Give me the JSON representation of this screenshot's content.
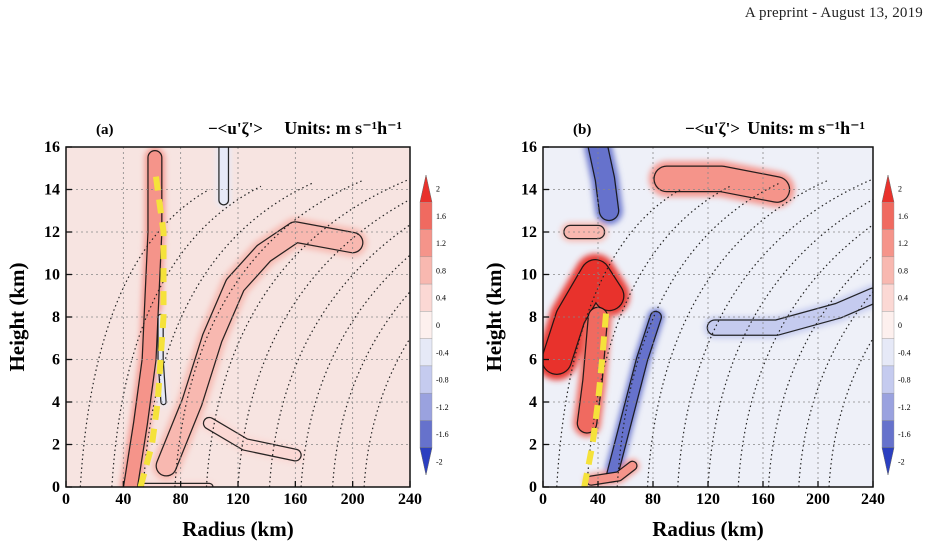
{
  "header": {
    "text": "A preprint - August 13, 2019"
  },
  "chart_data": [
    {
      "type": "heatmap",
      "panel": "(a)",
      "title": "−<u'ζ'>",
      "units": "Units: m s⁻¹h⁻¹",
      "xlabel": "Radius (km)",
      "ylabel": "Height (km)",
      "xlim": [
        0,
        240
      ],
      "ylim": [
        0,
        16
      ],
      "xticks": [
        "0",
        "40",
        "80",
        "120",
        "160",
        "200",
        "240"
      ],
      "yticks": [
        "0",
        "2",
        "4",
        "6",
        "8",
        "10",
        "12",
        "14",
        "16"
      ],
      "grid": true,
      "colorbar": {
        "levels": [
          "2",
          "1.6",
          "1.2",
          "0.8",
          "0.4",
          "0",
          "-0.4",
          "-0.8",
          "-1.2",
          "-1.6",
          "-2"
        ],
        "colors": [
          "#e8322c",
          "#f06a60",
          "#f5948a",
          "#f8b8b0",
          "#fbd8d4",
          "#fdf0ee",
          "#e6e9f7",
          "#c5cbef",
          "#9aa2df",
          "#6672cc",
          "#2b3fc0"
        ]
      },
      "dashed_line": [
        [
          52,
          0
        ],
        [
          60,
          2
        ],
        [
          64,
          4
        ],
        [
          66,
          6
        ],
        [
          68,
          8
        ],
        [
          68,
          10
        ],
        [
          68,
          12
        ],
        [
          64,
          14
        ],
        [
          62,
          15
        ]
      ],
      "features": [
        {
          "sign": "positive",
          "value": 1.0,
          "path": [
            [
              45,
              0
            ],
            [
              52,
              3
            ],
            [
              58,
              6
            ],
            [
              60,
              9
            ],
            [
              62,
              12
            ],
            [
              62,
              15.5
            ]
          ],
          "width_km": 14
        },
        {
          "sign": "positive",
          "value": 0.7,
          "path": [
            [
              70,
              1
            ],
            [
              88,
              4
            ],
            [
              102,
              7
            ],
            [
              118,
              9.5
            ],
            [
              138,
              11
            ],
            [
              160,
              12
            ],
            [
              200,
              11.5
            ]
          ],
          "width_km": 20
        },
        {
          "sign": "positive",
          "value": 0.5,
          "path": [
            [
              100,
              3
            ],
            [
              125,
              2
            ],
            [
              160,
              1.5
            ]
          ],
          "width_km": 12
        },
        {
          "sign": "positive",
          "value": 0.5,
          "path": [
            [
              55,
              0
            ],
            [
              75,
              0
            ],
            [
              100,
              0
            ]
          ],
          "width_km": 8
        },
        {
          "sign": "negative",
          "value": -0.6,
          "path": [
            [
              110,
              16
            ],
            [
              110,
              13.5
            ]
          ],
          "width_km": 10
        },
        {
          "sign": "negative",
          "value": -0.4,
          "path": [
            [
              68,
              4
            ],
            [
              66,
              6
            ],
            [
              66,
              8
            ]
          ],
          "width_km": 6
        }
      ]
    },
    {
      "type": "heatmap",
      "panel": "(b)",
      "title": "−<u'ζ'>",
      "units": "Units: m s⁻¹h⁻¹",
      "xlabel": "Radius (km)",
      "ylabel": "Height (km)",
      "xlim": [
        0,
        240
      ],
      "ylim": [
        0,
        16
      ],
      "xticks": [
        "0",
        "40",
        "80",
        "120",
        "160",
        "200",
        "240"
      ],
      "yticks": [
        "0",
        "2",
        "4",
        "6",
        "8",
        "10",
        "12",
        "14",
        "16"
      ],
      "grid": true,
      "colorbar": {
        "levels": [
          "2",
          "1.6",
          "1.2",
          "0.8",
          "0.4",
          "0",
          "-0.4",
          "-0.8",
          "-1.2",
          "-1.6",
          "-2"
        ],
        "colors": [
          "#e8322c",
          "#f06a60",
          "#f5948a",
          "#f8b8b0",
          "#fbd8d4",
          "#fdf0ee",
          "#e6e9f7",
          "#c5cbef",
          "#9aa2df",
          "#6672cc",
          "#2b3fc0"
        ]
      },
      "dashed_line": [
        [
          30,
          0
        ],
        [
          36,
          2
        ],
        [
          40,
          4
        ],
        [
          43,
          6
        ],
        [
          46,
          8.3
        ]
      ],
      "features": [
        {
          "sign": "positive",
          "value": 2.0,
          "path": [
            [
              10,
              6
            ],
            [
              20,
              8
            ],
            [
              38,
              10
            ],
            [
              48,
              9
            ]
          ],
          "width_km": 30
        },
        {
          "sign": "positive",
          "value": 1.6,
          "path": [
            [
              40,
              8
            ],
            [
              36,
              5
            ],
            [
              32,
              3
            ]
          ],
          "width_km": 20
        },
        {
          "sign": "negative",
          "value": -1.6,
          "path": [
            [
              50,
              0.5
            ],
            [
              60,
              3
            ],
            [
              72,
              6
            ],
            [
              82,
              8
            ]
          ],
          "width_km": 12
        },
        {
          "sign": "negative",
          "value": -1.6,
          "path": [
            [
              40,
              16
            ],
            [
              45,
              14.5
            ],
            [
              48,
              13
            ]
          ],
          "width_km": 20
        },
        {
          "sign": "positive",
          "value": 1.0,
          "path": [
            [
              90,
              14.5
            ],
            [
              130,
              14.5
            ],
            [
              170,
              14
            ]
          ],
          "width_km": 26
        },
        {
          "sign": "negative",
          "value": -0.8,
          "path": [
            [
              125,
              7.5
            ],
            [
              170,
              7.5
            ],
            [
              215,
              8.3
            ],
            [
              240,
              9
            ]
          ],
          "width_km": 16
        },
        {
          "sign": "positive",
          "value": 1.2,
          "path": [
            [
              35,
              0.3
            ],
            [
              55,
              0.5
            ],
            [
              65,
              1
            ]
          ],
          "width_km": 10
        },
        {
          "sign": "positive",
          "value": 0.8,
          "path": [
            [
              20,
              12
            ],
            [
              40,
              12
            ]
          ],
          "width_km": 14
        }
      ]
    }
  ]
}
